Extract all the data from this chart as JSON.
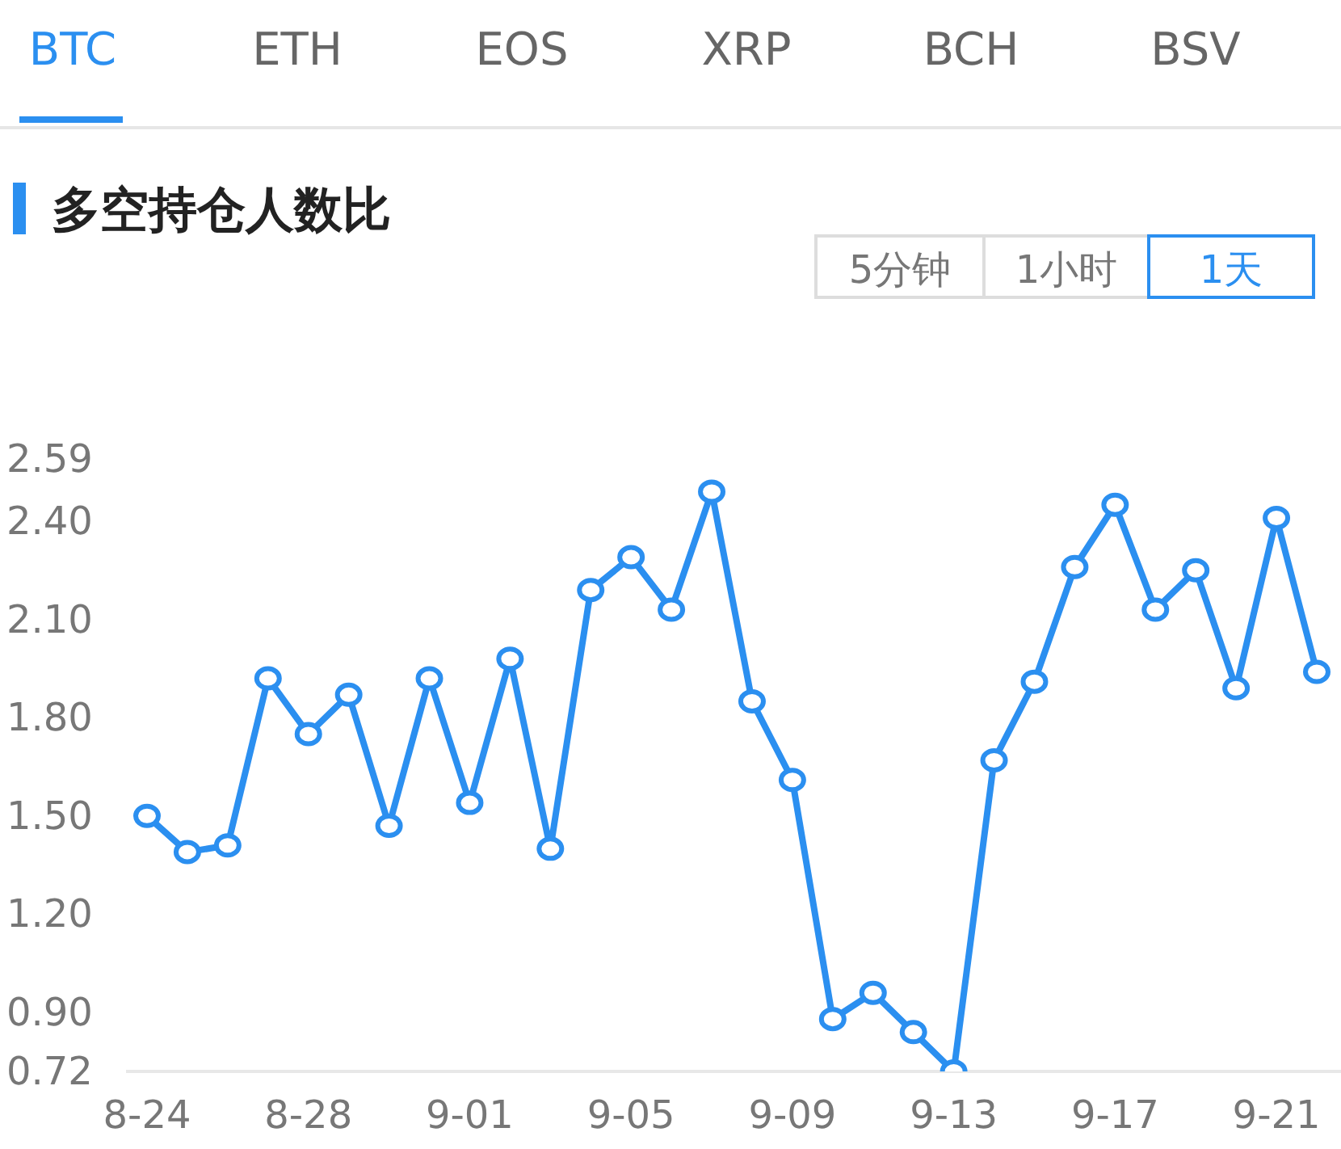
{
  "chart_data": {
    "type": "line",
    "title": "多空持仓人数比",
    "annotations": [
      "BTC",
      "ETH",
      "EOS",
      "XRP",
      "BCH",
      "BSV",
      "5分钟",
      "1小时",
      "1天"
    ],
    "categories": [
      "8-24",
      null,
      null,
      null,
      "8-28",
      null,
      null,
      null,
      "9-01",
      null,
      null,
      null,
      "9-05",
      null,
      null,
      null,
      "9-09",
      null,
      null,
      null,
      "9-13",
      null,
      null,
      null,
      "9-17",
      null,
      null,
      null,
      "9-21",
      null
    ],
    "series": [
      {
        "color": "#2b8ff0",
        "values": [
          1.5,
          1.39,
          1.41,
          1.92,
          1.75,
          1.87,
          1.47,
          1.92,
          1.54,
          1.98,
          1.4,
          2.19,
          2.29,
          2.13,
          2.49,
          1.85,
          1.61,
          0.88,
          0.96,
          0.84,
          0.72,
          1.67,
          1.91,
          2.26,
          2.45,
          2.13,
          2.25,
          1.89,
          2.41,
          1.94
        ]
      }
    ],
    "ylim": [
      0.72,
      2.59
    ],
    "yticks": [
      0.72,
      {
        "value": 0.9,
        "label": "0.90"
      },
      {
        "value": 1.2,
        "label": "1.20"
      },
      {
        "value": 1.5,
        "label": "1.50"
      },
      {
        "value": 1.8,
        "label": "1.80"
      },
      {
        "value": 2.1,
        "label": "2.10"
      },
      {
        "value": 2.4,
        "label": "2.40"
      },
      2.59
    ],
    "grid": false,
    "legend": false,
    "marker": "circle",
    "line_style": "solid"
  }
}
